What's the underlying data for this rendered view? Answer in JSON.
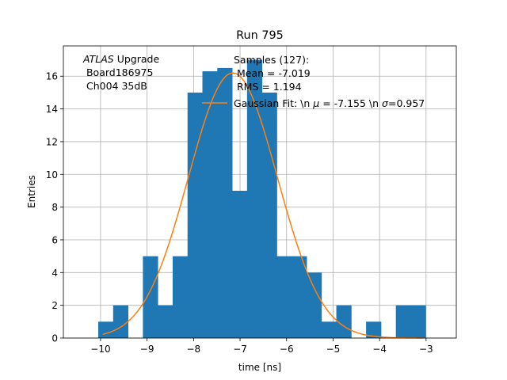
{
  "chart_data": {
    "type": "bar",
    "title": "Run 795",
    "xlabel": "time [ns]",
    "ylabel": "Entries",
    "xlim": [
      -10.8,
      -2.35
    ],
    "ylim": [
      0,
      17.85
    ],
    "grid": true,
    "xticks": [
      -10,
      -9,
      -8,
      -7,
      -6,
      -5,
      -4,
      -3
    ],
    "yticks": [
      0,
      2,
      4,
      6,
      8,
      10,
      12,
      14,
      16
    ],
    "bin_edges": [
      -10.05,
      -9.73,
      -9.41,
      -9.09,
      -8.77,
      -8.45,
      -8.13,
      -7.81,
      -7.49,
      -7.17,
      -6.85,
      -6.53,
      -6.21,
      -5.89,
      -5.57,
      -5.25,
      -4.93,
      -4.61,
      -4.29,
      -3.97,
      -3.65,
      -3.33,
      -3.01
    ],
    "hist_values": [
      1,
      2,
      0,
      5,
      2,
      5,
      15,
      16.3,
      16.5,
      9,
      17,
      15,
      5,
      5,
      4,
      1,
      2,
      0,
      1,
      0,
      2,
      2
    ],
    "bar_color": "#1f77b4",
    "fit": {
      "mu": -7.155,
      "sigma": 0.957,
      "amplitude": 16.2,
      "x_range": [
        -9.95,
        -3.05
      ],
      "color": "#ff7f0e"
    },
    "atlas_label": {
      "italic": "ATLAS",
      "rest": " Upgrade",
      "line2": " Board186975",
      "line3": " Ch004 35dB"
    },
    "legend": {
      "placement": "top-right",
      "samples_line1": "Samples (127):",
      "samples_line2": " Mean = -7.019",
      "samples_line3": " RMS = 1.194",
      "fit_prefix": "Gaussian Fit: \\n ",
      "fit_mu_symbol": "μ",
      "fit_middle": " = -7.155 \\n ",
      "fit_sigma_symbol": "σ",
      "fit_suffix": "=0.957"
    }
  }
}
